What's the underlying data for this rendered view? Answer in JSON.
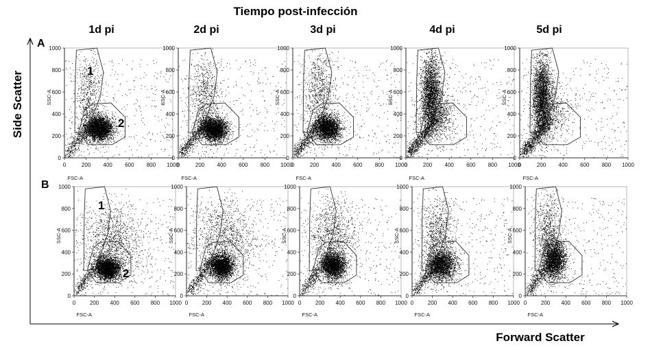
{
  "figure": {
    "title": "Tiempo post-infección",
    "x_axis_label": "Forward Scatter",
    "y_axis_label": "Side Scatter",
    "colors": {
      "dots": "#000000",
      "axes": "#000000",
      "gate": "#333333"
    }
  },
  "columns": [
    "1d pi",
    "2d pi",
    "3d pi",
    "4d pi",
    "5d pi"
  ],
  "rows": [
    {
      "label": "A"
    },
    {
      "label": "B"
    }
  ],
  "panel_axes": {
    "x_name": "FSC-A",
    "y_name": "SSC-A",
    "x_ticks": [
      "0",
      "200",
      "400",
      "600",
      "800",
      "1000"
    ],
    "y_ticks": [
      "0",
      "200",
      "400",
      "600",
      "800",
      "1000"
    ]
  },
  "gate_labels": {
    "gate1": "1",
    "gate2": "2"
  }
}
